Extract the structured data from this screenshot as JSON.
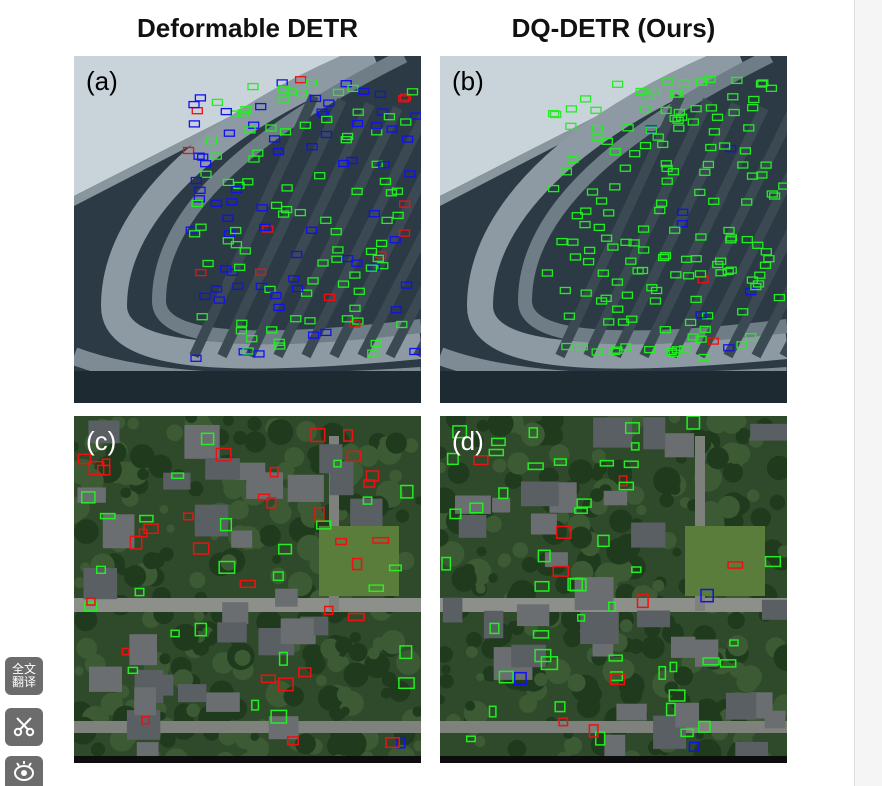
{
  "columns": {
    "left_title": "Deformable DETR",
    "right_title": "DQ-DETR (Ours)"
  },
  "panels": [
    {
      "label": "(a)",
      "scene": "parking-lot",
      "method": "Deformable DETR"
    },
    {
      "label": "(b)",
      "scene": "parking-lot",
      "method": "DQ-DETR (Ours)"
    },
    {
      "label": "(c)",
      "scene": "residential",
      "method": "Deformable DETR"
    },
    {
      "label": "(d)",
      "scene": "residential",
      "method": "DQ-DETR (Ours)"
    }
  ],
  "box_colors": {
    "green": "#22ee22",
    "red": "#ee1111",
    "blue": "#1111ee"
  },
  "side_toolbar": {
    "translate_label": "全文\n翻译",
    "scissors_icon": "scissors-icon",
    "eye_icon": "eye-icon"
  }
}
